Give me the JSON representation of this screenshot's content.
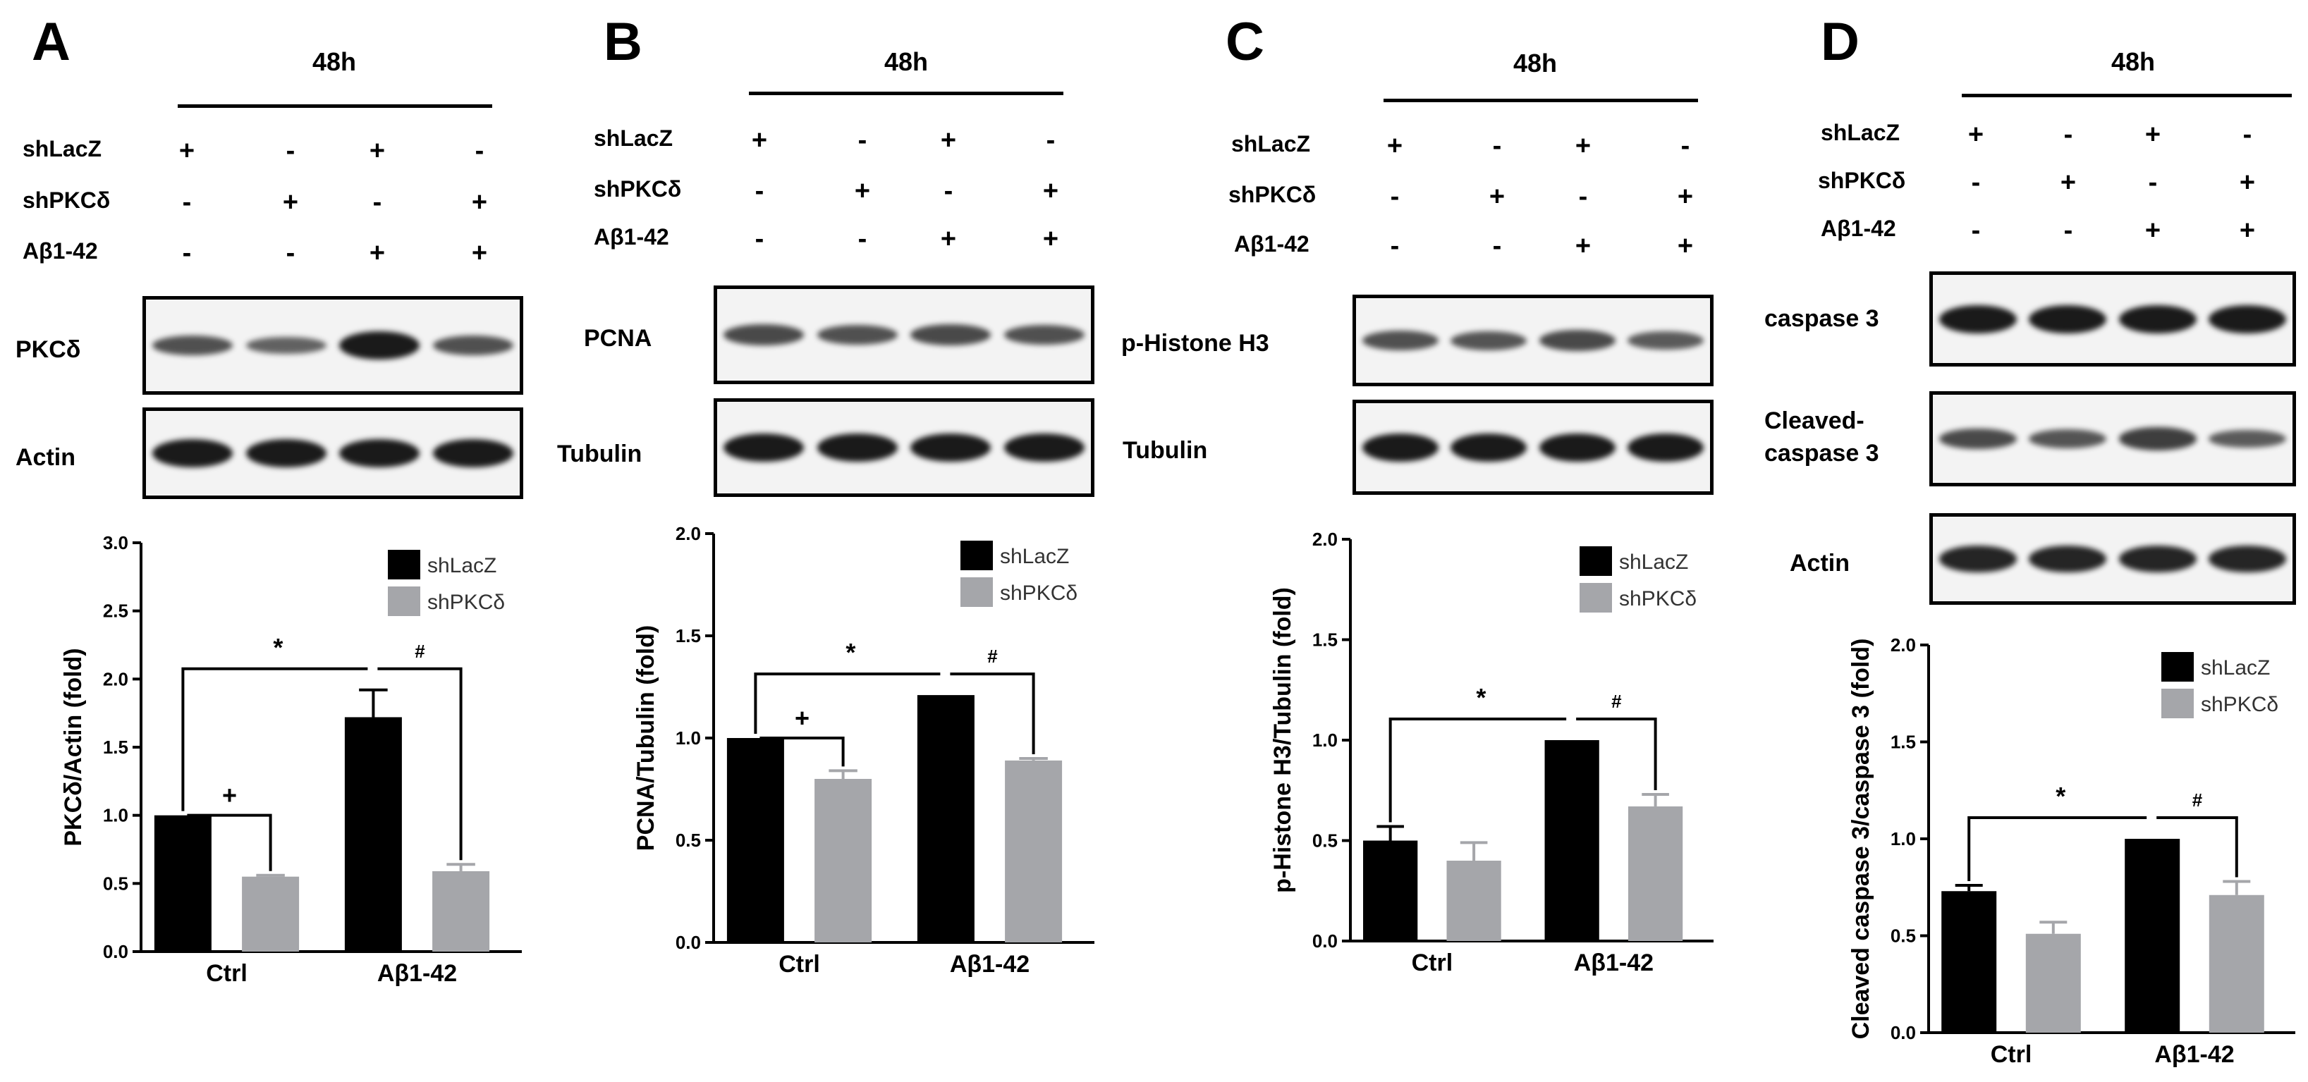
{
  "colors": {
    "shLacZ": "#000000",
    "shPKCd": "#a5a6aa"
  },
  "panels": [
    {
      "letter": "A",
      "time_label": "48h",
      "treatments": [
        {
          "label": "shLacZ",
          "signs": [
            "+",
            "-",
            "+",
            "-"
          ]
        },
        {
          "label": "shPKCδ",
          "signs": [
            "-",
            "+",
            "-",
            "+"
          ]
        },
        {
          "label": "Aβ1-42",
          "signs": [
            "-",
            "-",
            "+",
            "+"
          ]
        }
      ],
      "blots": [
        {
          "label": "PKCδ",
          "intensity": [
            0.55,
            0.4,
            1.0,
            0.55
          ]
        },
        {
          "label": "Actin",
          "intensity": [
            1.0,
            1.0,
            1.0,
            1.0
          ]
        }
      ],
      "chart_data": {
        "type": "bar",
        "ylabel": "PKCδ/Actin (fold)",
        "categories": [
          "Ctrl",
          "Aβ1-42"
        ],
        "ylim": [
          0,
          3.0
        ],
        "yticks": [
          "0.0",
          "0.5",
          "1.0",
          "1.5",
          "2.0",
          "2.5",
          "3.0"
        ],
        "series": [
          {
            "name": "shLacZ",
            "values": [
              1.0,
              1.72
            ],
            "errors": [
              0,
              0.2
            ]
          },
          {
            "name": "shPKCδ",
            "values": [
              0.55,
              0.59
            ],
            "errors": [
              0.01,
              0.05
            ]
          }
        ],
        "legend": "top-right",
        "annotations": [
          {
            "symbol": "*",
            "from": [
              0,
              0
            ],
            "to": [
              1,
              0
            ]
          },
          {
            "symbol": "+",
            "from": [
              0,
              0
            ],
            "to": [
              0,
              1
            ]
          },
          {
            "symbol": "#",
            "from": [
              1,
              0
            ],
            "to": [
              1,
              1
            ]
          }
        ]
      }
    },
    {
      "letter": "B",
      "time_label": "48h",
      "treatments": [
        {
          "label": "shLacZ",
          "signs": [
            "+",
            "-",
            "+",
            "-"
          ]
        },
        {
          "label": "shPKCδ",
          "signs": [
            "-",
            "+",
            "-",
            "+"
          ]
        },
        {
          "label": "Aβ1-42",
          "signs": [
            "-",
            "-",
            "+",
            "+"
          ]
        }
      ],
      "blots": [
        {
          "label": "PCNA",
          "intensity": [
            0.6,
            0.55,
            0.6,
            0.55
          ]
        },
        {
          "label": "Tubulin",
          "intensity": [
            1.0,
            1.0,
            1.0,
            1.0
          ]
        }
      ],
      "chart_data": {
        "type": "bar",
        "ylabel": "PCNA/Tubulin (fold)",
        "categories": [
          "Ctrl",
          "Aβ1-42"
        ],
        "ylim": [
          0,
          2.0
        ],
        "yticks": [
          "0.0",
          "0.5",
          "1.0",
          "1.5",
          "2.0"
        ],
        "series": [
          {
            "name": "shLacZ",
            "values": [
              1.0,
              1.21
            ],
            "errors": [
              0,
              0
            ]
          },
          {
            "name": "shPKCδ",
            "values": [
              0.8,
              0.89
            ],
            "errors": [
              0.04,
              0.01
            ]
          }
        ],
        "legend": "top-right",
        "annotations": [
          {
            "symbol": "*",
            "from": [
              0,
              0
            ],
            "to": [
              1,
              0
            ]
          },
          {
            "symbol": "+",
            "from": [
              0,
              0
            ],
            "to": [
              0,
              1
            ]
          },
          {
            "symbol": "#",
            "from": [
              1,
              0
            ],
            "to": [
              1,
              1
            ]
          }
        ]
      }
    },
    {
      "letter": "C",
      "time_label": "48h",
      "treatments": [
        {
          "label": "shLacZ",
          "signs": [
            "+",
            "-",
            "+",
            "-"
          ]
        },
        {
          "label": "shPKCδ",
          "signs": [
            "-",
            "+",
            "-",
            "+"
          ]
        },
        {
          "label": "Aβ1-42",
          "signs": [
            "-",
            "-",
            "+",
            "+"
          ]
        }
      ],
      "blots": [
        {
          "label": "p-Histone H3",
          "intensity": [
            0.55,
            0.5,
            0.6,
            0.45
          ]
        },
        {
          "label": "Tubulin",
          "intensity": [
            1.0,
            1.0,
            1.0,
            1.0
          ]
        }
      ],
      "chart_data": {
        "type": "bar",
        "ylabel": "p-Histone H3/Tubulin (fold)",
        "categories": [
          "Ctrl",
          "Aβ1-42"
        ],
        "ylim": [
          0,
          2.0
        ],
        "yticks": [
          "0.0",
          "0.5",
          "1.0",
          "1.5",
          "2.0"
        ],
        "series": [
          {
            "name": "shLacZ",
            "values": [
              0.5,
              1.0
            ],
            "errors": [
              0.07,
              0
            ]
          },
          {
            "name": "shPKCδ",
            "values": [
              0.4,
              0.67
            ],
            "errors": [
              0.09,
              0.06
            ]
          }
        ],
        "legend": "top-right",
        "annotations": [
          {
            "symbol": "*",
            "from": [
              0,
              0
            ],
            "to": [
              1,
              0
            ]
          },
          {
            "symbol": "#",
            "from": [
              1,
              0
            ],
            "to": [
              1,
              1
            ]
          }
        ]
      }
    },
    {
      "letter": "D",
      "time_label": "48h",
      "treatments": [
        {
          "label": "shLacZ",
          "signs": [
            "+",
            "-",
            "+",
            "-"
          ]
        },
        {
          "label": "shPKCδ",
          "signs": [
            "-",
            "+",
            "-",
            "+"
          ]
        },
        {
          "label": "Aβ1-42",
          "signs": [
            "-",
            "-",
            "+",
            "+"
          ]
        }
      ],
      "blots": [
        {
          "label": "caspase 3",
          "intensity": [
            1.0,
            1.0,
            1.0,
            1.0
          ]
        },
        {
          "label": "Cleaved-\ncaspase 3",
          "intensity": [
            0.6,
            0.5,
            0.7,
            0.45
          ]
        },
        {
          "label": "Actin",
          "intensity": [
            0.9,
            0.9,
            0.9,
            0.9
          ]
        }
      ],
      "chart_data": {
        "type": "bar",
        "ylabel": "Cleaved caspase 3/caspase 3 (fold)",
        "categories": [
          "Ctrl",
          "Aβ1-42"
        ],
        "ylim": [
          0,
          2.0
        ],
        "yticks": [
          "0.0",
          "0.5",
          "1.0",
          "1.5",
          "2.0"
        ],
        "series": [
          {
            "name": "shLacZ",
            "values": [
              0.73,
              1.0
            ],
            "errors": [
              0.03,
              0
            ]
          },
          {
            "name": "shPKCδ",
            "values": [
              0.51,
              0.71
            ],
            "errors": [
              0.06,
              0.07
            ]
          }
        ],
        "legend": "top-right",
        "annotations": [
          {
            "symbol": "*",
            "from": [
              0,
              0
            ],
            "to": [
              1,
              0
            ]
          },
          {
            "symbol": "#",
            "from": [
              1,
              0
            ],
            "to": [
              1,
              1
            ]
          }
        ]
      }
    }
  ]
}
